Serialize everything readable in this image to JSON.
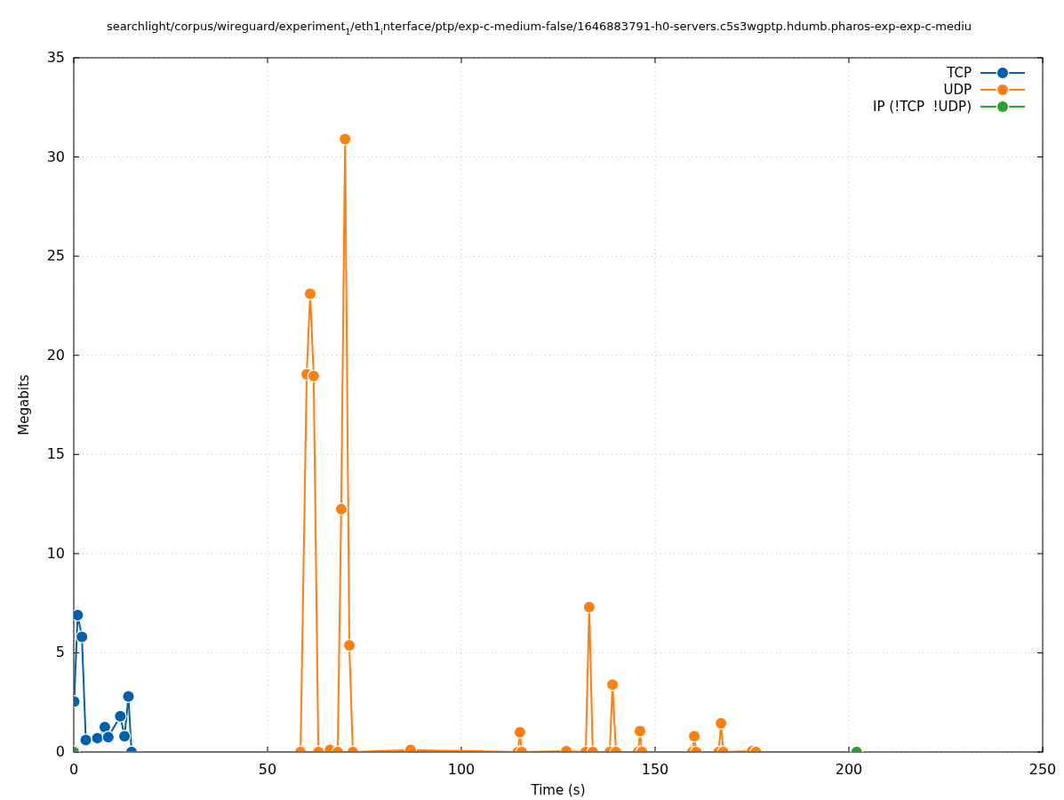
{
  "chart_data": {
    "type": "line",
    "title": "searchlight/corpus/wireguard/experiment$_{1}$/eth1$_{i}$nterface/ptp/exp-c-medium-false/1646883791-h0-servers.c5s3wgptp.hdumb.pharos-exp-exp-c-mediu",
    "xlabel": "Time (s)",
    "ylabel": "Megabits",
    "xlim": [
      0,
      250
    ],
    "xticks": [
      0,
      50,
      100,
      150,
      200,
      250
    ],
    "ylim": [
      0,
      35
    ],
    "yticks": [
      0,
      5,
      10,
      15,
      20,
      25,
      30,
      35
    ],
    "grid": true,
    "legend": "top right",
    "marker": "circle",
    "line_style": "solid",
    "series": [
      {
        "name": "TCP",
        "color": "#0060ad",
        "x": [
          0.1,
          1.0,
          2.1,
          3.1,
          6.1,
          8.0,
          8.9,
          12.0,
          13.1,
          14.1,
          14.9
        ],
        "values": [
          2.54,
          6.9,
          5.8,
          0.6,
          0.7,
          1.25,
          0.75,
          1.8,
          0.8,
          2.8,
          0
        ]
      },
      {
        "name": "UDP",
        "color": "#ff7f0e",
        "x": [
          58.5,
          60.1,
          61.0,
          61.9,
          63.1,
          66.1,
          68.1,
          69.0,
          70.0,
          71.1,
          72.0,
          86.9,
          114.6,
          115.1,
          115.6,
          127.1,
          132.1,
          133.0,
          133.9,
          138.3,
          139.0,
          139.9,
          145.6,
          146.1,
          146.6,
          159.6,
          160.1,
          160.6,
          166.4,
          167.0,
          167.6,
          175.0,
          176.0
        ],
        "values": [
          0,
          19.05,
          23.1,
          18.96,
          0,
          0.1,
          0,
          12.24,
          30.9,
          5.38,
          0,
          0.1,
          0,
          1.0,
          0,
          0.05,
          0,
          7.3,
          0,
          0,
          3.4,
          0,
          0,
          1.05,
          0,
          0,
          0.8,
          0,
          0,
          1.45,
          0,
          0.05,
          0
        ]
      },
      {
        "name": "IP (!TCP  !UDP)",
        "color": "#2ca02c",
        "x": [
          0,
          202
        ],
        "values": [
          0,
          0
        ]
      }
    ]
  }
}
